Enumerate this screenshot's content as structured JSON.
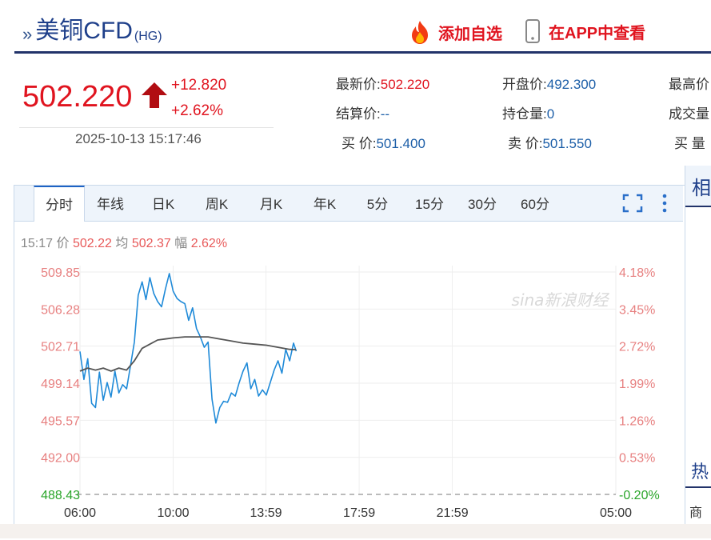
{
  "header": {
    "title": "美铜CFD",
    "code": "(HG)",
    "add_watch": "添加自选",
    "app_view": "在APP中查看"
  },
  "price": {
    "last": "502.220",
    "change": "+12.820",
    "change_pct": "+2.62%",
    "datetime": "2025-10-13 15:17:46"
  },
  "stats": {
    "latest_label": "最新价:",
    "latest_value": "502.220",
    "open_label": "开盘价:",
    "open_value": "492.300",
    "high_label": "最高价",
    "settle_label": "结算价:",
    "settle_value": "--",
    "oi_label": "持仓量:",
    "oi_value": "0",
    "volume_label": "成交量",
    "bid_label": "买 价:",
    "bid_value": "501.400",
    "ask_label": "卖 价:",
    "ask_value": "501.550",
    "bid_vol_label": "买 量"
  },
  "tabs": [
    "分时",
    "年线",
    "日K",
    "周K",
    "月K",
    "年K",
    "5分",
    "15分",
    "30分",
    "60分"
  ],
  "active_tab": "分时",
  "info": {
    "time": "15:17",
    "price_label": "价",
    "price": "502.22",
    "avg_label": "均",
    "avg": "502.37",
    "amp_label": "幅",
    "amp": "2.62%"
  },
  "side": {
    "related": "相",
    "hot": "热",
    "goods": "商品"
  },
  "watermark": "sina新浪财经",
  "colors": {
    "up": "#e0141f",
    "down": "#2aa52a",
    "line": "#1f8ad8",
    "avg": "#555555",
    "navy": "#22336a"
  },
  "chart_data": {
    "type": "line",
    "left_ticks": [
      "509.85",
      "506.28",
      "502.71",
      "499.14",
      "495.57",
      "492.00",
      "488.43"
    ],
    "right_ticks": [
      "4.18%",
      "3.45%",
      "2.72%",
      "1.99%",
      "1.26%",
      "0.53%",
      "-0.20%"
    ],
    "x_ticks": [
      "06:00",
      "10:00",
      "13:59",
      "17:59",
      "21:59",
      "05:00"
    ],
    "ylim": [
      488.43,
      509.85
    ],
    "reference": 489.4,
    "series": [
      {
        "x": [
          "06:00",
          "06:10",
          "06:20",
          "06:30",
          "06:40",
          "06:50",
          "07:00",
          "07:10",
          "07:20",
          "07:30",
          "07:40",
          "07:50",
          "08:00",
          "08:10",
          "08:20",
          "08:30",
          "08:40",
          "08:50",
          "09:00",
          "09:10",
          "09:20",
          "09:30",
          "09:40",
          "09:50",
          "10:00",
          "10:10",
          "10:20",
          "10:30",
          "10:40",
          "10:50",
          "11:00",
          "11:10",
          "11:20",
          "11:30",
          "11:40",
          "11:50",
          "12:00",
          "12:10",
          "12:20",
          "12:30",
          "12:40",
          "12:50",
          "13:00",
          "13:10",
          "13:20",
          "13:30",
          "13:40",
          "13:50",
          "14:00",
          "14:10",
          "14:20",
          "14:30",
          "14:40",
          "14:50",
          "15:00",
          "15:10",
          "15:17"
        ],
        "values": [
          502.2,
          499.5,
          501.5,
          497.2,
          496.8,
          500.2,
          497.5,
          499.2,
          497.8,
          500.3,
          498.2,
          499.0,
          498.6,
          500.8,
          503.1,
          507.6,
          508.9,
          507.2,
          509.3,
          507.8,
          507.0,
          506.5,
          508.2,
          509.7,
          508.0,
          507.3,
          507.0,
          506.8,
          505.2,
          506.4,
          504.4,
          503.6,
          502.6,
          503.1,
          497.6,
          495.3,
          496.8,
          497.4,
          497.3,
          498.2,
          497.9,
          499.2,
          500.3,
          501.1,
          498.6,
          499.5,
          497.9,
          498.5,
          498.0,
          499.2,
          500.4,
          501.3,
          500.1,
          502.4,
          501.3,
          503.0,
          502.22
        ]
      },
      {
        "name": "均",
        "x": [
          "06:00",
          "06:20",
          "06:40",
          "07:00",
          "07:20",
          "07:40",
          "08:00",
          "08:20",
          "08:40",
          "09:00",
          "09:20",
          "09:40",
          "10:00",
          "10:30",
          "11:00",
          "11:30",
          "12:00",
          "12:30",
          "13:00",
          "13:30",
          "14:00",
          "14:30",
          "15:00",
          "15:17"
        ],
        "values": [
          500.3,
          500.6,
          500.4,
          500.6,
          500.3,
          500.6,
          500.4,
          501.3,
          502.5,
          502.9,
          503.3,
          503.4,
          503.5,
          503.6,
          503.6,
          503.6,
          503.4,
          503.2,
          503.0,
          502.9,
          502.8,
          502.6,
          502.4,
          502.37
        ]
      }
    ]
  }
}
